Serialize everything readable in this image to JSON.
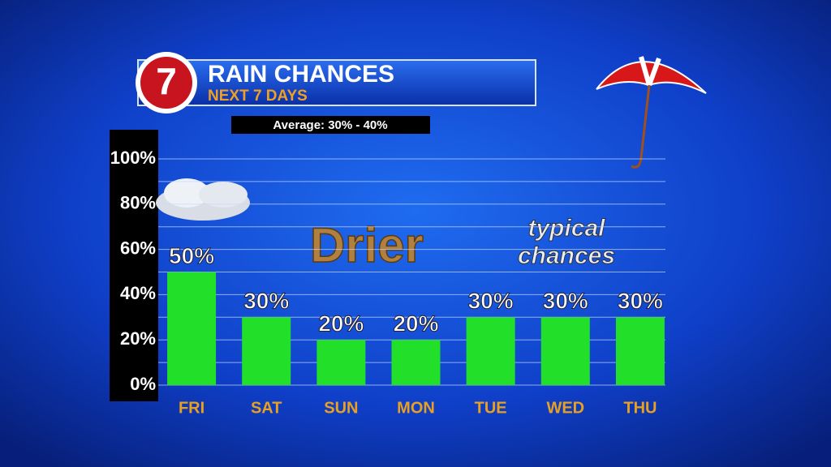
{
  "chart_data": {
    "type": "bar",
    "logo": "7",
    "title": "RAIN CHANCES",
    "subtitle": "NEXT 7 DAYS",
    "annotations": [
      "Average: 30% - 40%",
      "Drier",
      "typical",
      "chances"
    ],
    "categories": [
      "FRI",
      "SAT",
      "SUN",
      "MON",
      "TUE",
      "WED",
      "THU"
    ],
    "values": [
      50,
      30,
      20,
      20,
      30,
      30,
      30
    ],
    "value_labels": [
      "50%",
      "30%",
      "20%",
      "20%",
      "30%",
      "30%",
      "30%"
    ],
    "color": "#22e02a",
    "ylim": [
      0,
      100
    ],
    "yticks": [
      {
        "value": 0,
        "label": "0%"
      },
      {
        "value": 20,
        "label": "20%"
      },
      {
        "value": 40,
        "label": "40%"
      },
      {
        "value": 60,
        "label": "60%"
      },
      {
        "value": 80,
        "label": "80%"
      },
      {
        "value": 100,
        "label": "100%"
      }
    ],
    "minor_yticks": [
      10,
      30,
      50,
      70,
      90
    ],
    "grid": true
  }
}
